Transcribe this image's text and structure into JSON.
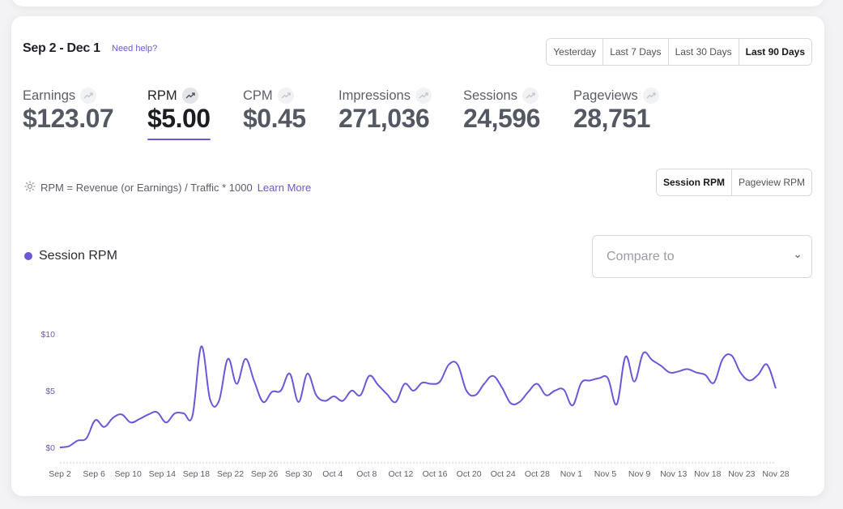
{
  "header": {
    "date_range": "Sep 2 - Dec 1",
    "help_link": "Need help?",
    "ranges": [
      {
        "label": "Yesterday",
        "active": false
      },
      {
        "label": "Last 7 Days",
        "active": false
      },
      {
        "label": "Last 30 Days",
        "active": false
      },
      {
        "label": "Last 90 Days",
        "active": true
      }
    ]
  },
  "metrics": [
    {
      "label": "Earnings",
      "value": "$123.07",
      "active": false,
      "icon": "trend-up-icon"
    },
    {
      "label": "RPM",
      "value": "$5.00",
      "active": true,
      "icon": "trend-up-icon"
    },
    {
      "label": "CPM",
      "value": "$0.45",
      "active": false,
      "icon": "trend-up-icon"
    },
    {
      "label": "Impressions",
      "value": "271,036",
      "active": false,
      "icon": "trend-up-icon"
    },
    {
      "label": "Sessions",
      "value": "24,596",
      "active": false,
      "icon": "trend-up-icon"
    },
    {
      "label": "Pageviews",
      "value": "28,751",
      "active": false,
      "icon": "trend-up-icon"
    }
  ],
  "formula": {
    "icon": "sun-icon",
    "text": "RPM = Revenue (or Earnings) / Traffic * 1000",
    "learn_more": "Learn More"
  },
  "rpm_toggle": {
    "session": "Session RPM",
    "pageview": "Pageview RPM",
    "active": "session"
  },
  "compare": {
    "placeholder": "Compare to",
    "icon": "chevron-down-icon"
  },
  "colors": {
    "accent": "#6c57d8",
    "axis_text": "#6b57d9",
    "muted": "#9a9ca4"
  },
  "chart_data": {
    "type": "line",
    "legend": "Session RPM",
    "legend_placement": "top-left",
    "y_ticks": [
      "$0",
      "$5",
      "$10"
    ],
    "ylim": [
      0,
      10
    ],
    "x_tick_labels": [
      "Sep 2",
      "Sep 6",
      "Sep 10",
      "Sep 14",
      "Sep 18",
      "Sep 22",
      "Sep 26",
      "Sep 30",
      "Oct 4",
      "Oct 8",
      "Oct 12",
      "Oct 16",
      "Oct 20",
      "Oct 24",
      "Oct 28",
      "Nov 1",
      "Nov 5",
      "Nov 9",
      "Nov 13",
      "Nov 18",
      "Nov 23",
      "Nov 28"
    ],
    "series": [
      {
        "name": "Session RPM",
        "values": [
          0.0,
          0.1,
          0.6,
          0.8,
          2.4,
          1.8,
          2.6,
          2.9,
          2.2,
          2.5,
          2.9,
          3.1,
          2.2,
          3.0,
          3.0,
          2.8,
          8.9,
          4.2,
          4.1,
          7.8,
          5.6,
          7.8,
          5.8,
          4.0,
          4.9,
          5.0,
          6.5,
          4.0,
          6.5,
          4.6,
          4.1,
          4.5,
          4.1,
          5.0,
          4.6,
          6.3,
          5.5,
          4.7,
          4.0,
          5.6,
          5.0,
          5.7,
          5.6,
          5.8,
          7.3,
          7.3,
          5.0,
          4.6,
          5.6,
          6.3,
          5.3,
          3.9,
          4.0,
          4.9,
          5.6,
          4.6,
          5.0,
          5.1,
          3.7,
          5.7,
          5.9,
          6.1,
          6.1,
          3.8,
          8.0,
          5.8,
          8.3,
          7.7,
          7.2,
          6.6,
          6.7,
          6.9,
          6.6,
          6.4,
          5.7,
          7.8,
          8.1,
          6.6,
          5.9,
          6.4,
          7.3,
          5.2
        ]
      }
    ],
    "grid": false
  }
}
